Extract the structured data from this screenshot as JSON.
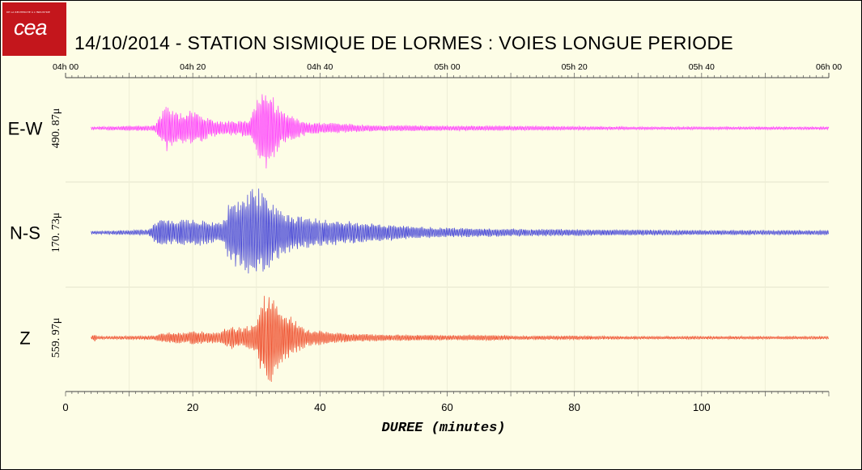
{
  "logo": {
    "text": "cea",
    "tagline": "DE LA RECHERCHE À L'INDUSTRIE"
  },
  "title": "14/10/2014  -  STATION SISMIQUE DE LORMES : VOIES LONGUE PERIODE",
  "chart_data": {
    "type": "line",
    "title": "14/10/2014  -  STATION SISMIQUE DE LORMES : VOIES LONGUE PERIODE",
    "xlabel": "DUREE (minutes)",
    "xlim": [
      0,
      120
    ],
    "x_ticks": [
      0,
      20,
      40,
      60,
      80,
      100
    ],
    "time_ticks": [
      "04h 00",
      "04h 20",
      "04h 40",
      "05h 00",
      "05h 20",
      "05h 40",
      "06h 00"
    ],
    "grid": true,
    "series": [
      {
        "name": "E-W",
        "scale_label": "490. 87μ",
        "color": "#ff33ff",
        "envelope": {
          "x": [
            0,
            4,
            14,
            15,
            16,
            18,
            20,
            21,
            23,
            25,
            27,
            29,
            30,
            31,
            32,
            33,
            34,
            36,
            38,
            40,
            43,
            46,
            50,
            55,
            60,
            63,
            70,
            80,
            90,
            100,
            110,
            120
          ],
          "a": [
            0,
            0.03,
            0.06,
            0.28,
            0.5,
            0.3,
            0.38,
            0.3,
            0.18,
            0.15,
            0.16,
            0.2,
            0.5,
            1.0,
            0.8,
            0.55,
            0.38,
            0.22,
            0.14,
            0.12,
            0.1,
            0.08,
            0.06,
            0.06,
            0.05,
            0.05,
            0.05,
            0.04,
            0.03,
            0.03,
            0.03,
            0.03
          ]
        }
      },
      {
        "name": "N-S",
        "scale_label": "170. 73μ",
        "color": "#3b3bd6",
        "envelope": {
          "x": [
            0,
            4,
            13,
            14,
            15,
            17,
            20,
            22,
            24,
            25,
            26,
            27,
            29,
            30,
            31,
            33,
            35,
            38,
            40,
            43,
            46,
            50,
            53,
            56,
            60,
            70,
            80,
            90,
            100,
            110,
            120
          ],
          "a": [
            0,
            0.03,
            0.06,
            0.22,
            0.3,
            0.25,
            0.3,
            0.25,
            0.2,
            0.28,
            0.8,
            0.7,
            0.9,
            1.0,
            0.85,
            0.6,
            0.4,
            0.32,
            0.28,
            0.25,
            0.22,
            0.18,
            0.15,
            0.12,
            0.1,
            0.08,
            0.07,
            0.06,
            0.05,
            0.05,
            0.05
          ]
        }
      },
      {
        "name": "Z",
        "scale_label": "559. 97μ",
        "color": "#ee4422",
        "envelope": {
          "x": [
            0,
            4,
            4.6,
            5,
            14,
            15,
            17,
            19,
            20,
            22,
            24,
            25,
            26,
            28,
            30,
            31,
            32,
            34,
            36,
            38,
            42,
            46,
            50,
            56,
            60,
            67,
            70,
            80,
            90,
            100,
            110,
            120
          ],
          "a": [
            0,
            0.02,
            0.1,
            0.03,
            0.04,
            0.1,
            0.12,
            0.1,
            0.15,
            0.13,
            0.1,
            0.2,
            0.25,
            0.2,
            0.35,
            0.85,
            1.0,
            0.6,
            0.35,
            0.18,
            0.12,
            0.08,
            0.07,
            0.06,
            0.05,
            0.06,
            0.04,
            0.04,
            0.03,
            0.03,
            0.03,
            0.03
          ]
        }
      }
    ]
  }
}
